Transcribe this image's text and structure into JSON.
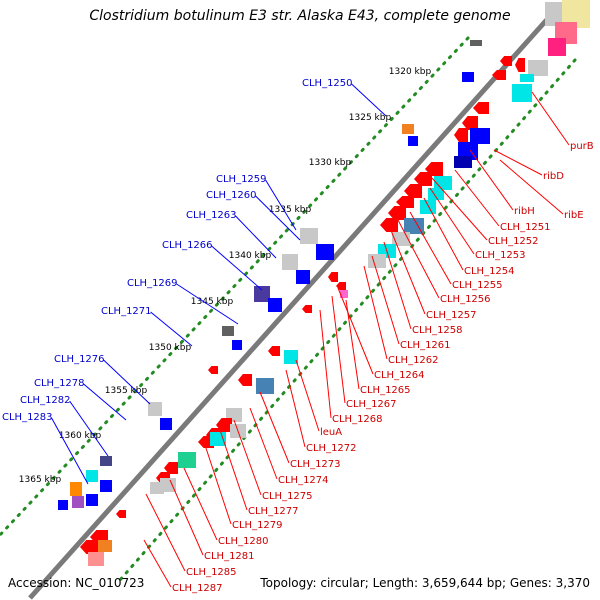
{
  "title": "Clostridium botulinum E3 str. Alaska E43, complete genome",
  "accession_label": "Accession: NC_010723",
  "summary_label": "Topology: circular; Length: 3,659,644 bp; Genes: 3,370",
  "colors": {
    "backbone": "#7f7f7f",
    "forward_gene": "#ff0000",
    "reverse_gene": "#0000ff",
    "gc_dots": "#228b22",
    "cyan": "#00e5e5",
    "steel": "#4682b4",
    "gray": "#c8c8c8"
  },
  "kbp_ticks": [
    "1320 kbp",
    "1325 kbp",
    "1330 kbp",
    "1335 kbp",
    "1340 kbp",
    "1345 kbp",
    "1350 kbp",
    "1355 kbp",
    "1360 kbp",
    "1365 kbp"
  ],
  "left_labels": [
    "CLH_1250",
    "CLH_1259",
    "CLH_1260",
    "CLH_1263",
    "CLH_1266",
    "CLH_1269",
    "CLH_1271",
    "CLH_1276",
    "CLH_1278",
    "CLH_1282",
    "CLH_1283"
  ],
  "right_labels": [
    "purB",
    "ribD",
    "ribE",
    "ribH",
    "CLH_1251",
    "CLH_1252",
    "CLH_1253",
    "CLH_1254",
    "CLH_1255",
    "CLH_1256",
    "CLH_1257",
    "CLH_1258",
    "CLH_1261",
    "CLH_1262",
    "CLH_1264",
    "CLH_1265",
    "CLH_1267",
    "CLH_1268",
    "leuA",
    "CLH_1272",
    "CLH_1273",
    "CLH_1274",
    "CLH_1275",
    "CLH_1277",
    "CLH_1279",
    "CLH_1280",
    "CLH_1281",
    "CLH_1285",
    "CLH_1287"
  ]
}
